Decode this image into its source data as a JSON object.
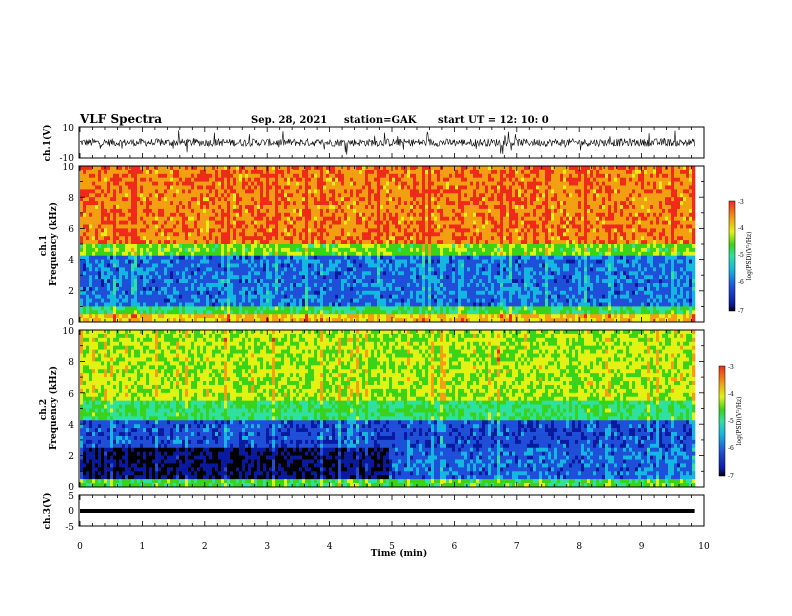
{
  "header": {
    "title": "VLF Spectra",
    "date": "Sep. 28, 2021",
    "station": "station=GAK",
    "start": "start  UT =   12: 10: 0"
  },
  "colors": {
    "waveform": "#000000",
    "colormap": [
      "#000000",
      "#0a1a9e",
      "#1f4fd8",
      "#14b7e0",
      "#2fe0a0",
      "#39d31a",
      "#e3f213",
      "#f2a012",
      "#f02a1a"
    ]
  },
  "chart_data": [
    {
      "type": "line",
      "name": "ch1-waveform",
      "ylabel": "ch.1(V)",
      "ylim": [
        -10,
        10
      ],
      "y_tick_labels": [
        "10",
        "-10"
      ],
      "description_values": "voltage noise approximately ±3 V around 0 with frequent spikes"
    },
    {
      "type": "heatmap",
      "name": "ch1-spectrogram",
      "ylabel": "ch.1\nFrequency (kHz)",
      "ylim": [
        0,
        10
      ],
      "y_tick_labels": [
        "10",
        "8",
        "6",
        "4",
        "2",
        "0"
      ],
      "colorbar": {
        "label": "log(PSD)(V²/Hz)",
        "range": [
          -7,
          -3
        ],
        "tick_labels": [
          "-3",
          "-4",
          "-5",
          "-6",
          "-7"
        ]
      }
    },
    {
      "type": "heatmap",
      "name": "ch2-spectrogram",
      "ylabel": "ch.2\nFrequency (kHz)",
      "ylim": [
        0,
        10
      ],
      "y_tick_labels": [
        "10",
        "8",
        "6",
        "4",
        "2",
        "0"
      ],
      "colorbar": {
        "label": "log(PSD)(V²/Hz)",
        "range": [
          -7,
          -3
        ],
        "tick_labels": [
          "-3",
          "-4",
          "-5",
          "-6",
          "-7"
        ]
      }
    },
    {
      "type": "line",
      "name": "ch3-waveform",
      "ylabel": "ch.3(V)",
      "ylim": [
        -5,
        5
      ],
      "y_tick_labels": [
        "5",
        "0",
        "-5"
      ],
      "constant_value": -1
    }
  ],
  "x_axis": {
    "label": "Time (min)",
    "range": [
      0,
      10
    ],
    "tick_labels": [
      "0",
      "1",
      "2",
      "3",
      "4",
      "5",
      "6",
      "7",
      "8",
      "9",
      "10"
    ],
    "data_end": 9.85
  }
}
